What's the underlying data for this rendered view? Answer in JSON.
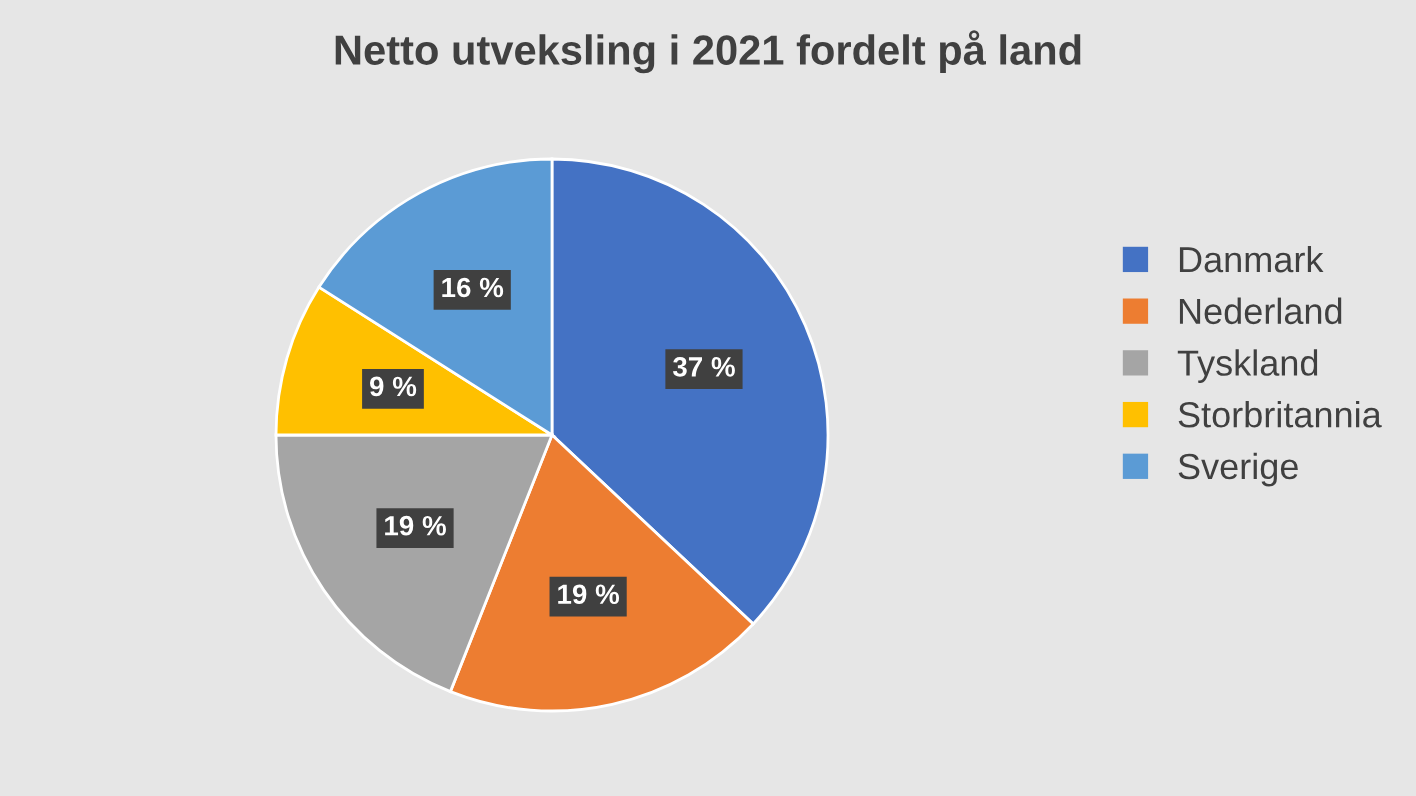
{
  "chart_data": {
    "type": "pie",
    "title": "Netto utveksling i 2021 fordelt på land",
    "categories": [
      "Danmark",
      "Nederland",
      "Tyskland",
      "Storbritannia",
      "Sverige"
    ],
    "values": [
      37,
      19,
      19,
      9,
      16
    ],
    "colors": [
      "#4472c4",
      "#ed7d31",
      "#a5a5a5",
      "#ffc000",
      "#5b9bd5"
    ],
    "value_labels": [
      "37 %",
      "19 %",
      "19 %",
      "9 %",
      "16 %"
    ],
    "legend": "right"
  }
}
